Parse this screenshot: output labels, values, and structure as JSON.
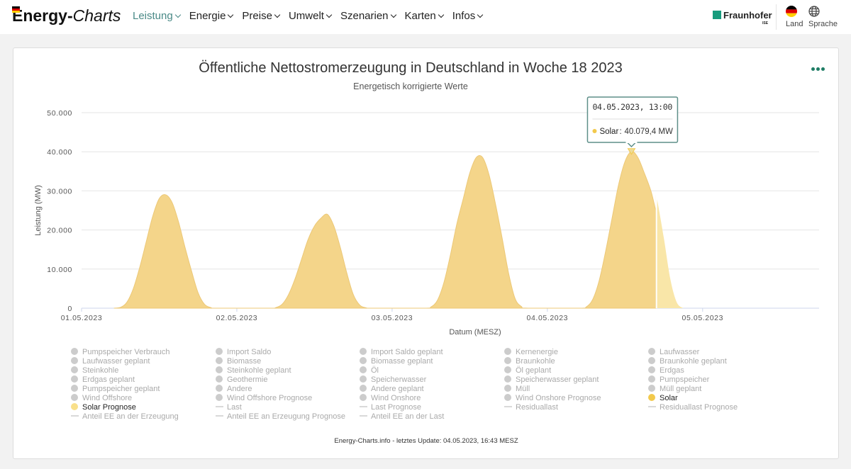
{
  "header": {
    "logo_bold": "Energy-",
    "logo_italic": "Charts",
    "nav": [
      {
        "label": "Leistung",
        "active": true
      },
      {
        "label": "Energie",
        "active": false
      },
      {
        "label": "Preise",
        "active": false
      },
      {
        "label": "Umwelt",
        "active": false
      },
      {
        "label": "Szenarien",
        "active": false
      },
      {
        "label": "Karten",
        "active": false
      },
      {
        "label": "Infos",
        "active": false
      }
    ],
    "brand": "Fraunhofer",
    "brand_sub": "ISE",
    "land_label": "Land",
    "sprache_label": "Sprache",
    "accent_color": "#4a8a87"
  },
  "chart_data": {
    "type": "area",
    "title": "Öffentliche Nettostromerzeugung in Deutschland in Woche 18 2023",
    "subtitle": "Energetisch korrigierte Werte",
    "ylabel": "Leistung (MW)",
    "xlabel": "Datum (MESZ)",
    "ylim": [
      0,
      50000
    ],
    "yticks": [
      0,
      10000,
      20000,
      30000,
      40000,
      50000
    ],
    "ytick_labels": [
      "0",
      "10.000",
      "20.000",
      "30.000",
      "40.000",
      "50.000"
    ],
    "xlim": [
      "2023-05-01T00:00",
      "2023-05-05T18:00"
    ],
    "xtick_labels": [
      "01.05.2023",
      "02.05.2023",
      "03.05.2023",
      "04.05.2023",
      "05.05.2023"
    ],
    "grid": true,
    "series": [
      {
        "name": "Solar",
        "color": "#f4d58a",
        "x": [
          "2023-05-01T05:00",
          "2023-05-01T06:00",
          "2023-05-01T07:00",
          "2023-05-01T08:00",
          "2023-05-01T09:00",
          "2023-05-01T10:00",
          "2023-05-01T11:00",
          "2023-05-01T12:00",
          "2023-05-01T13:00",
          "2023-05-01T14:00",
          "2023-05-01T15:00",
          "2023-05-01T16:00",
          "2023-05-01T17:00",
          "2023-05-01T18:00",
          "2023-05-01T19:00",
          "2023-05-01T20:00",
          "2023-05-01T21:00",
          "2023-05-02T05:00",
          "2023-05-02T06:00",
          "2023-05-02T07:00",
          "2023-05-02T08:00",
          "2023-05-02T09:00",
          "2023-05-02T10:00",
          "2023-05-02T11:00",
          "2023-05-02T12:00",
          "2023-05-02T13:00",
          "2023-05-02T14:00",
          "2023-05-02T15:00",
          "2023-05-02T16:00",
          "2023-05-02T17:00",
          "2023-05-02T18:00",
          "2023-05-02T19:00",
          "2023-05-02T20:00",
          "2023-05-02T21:00",
          "2023-05-03T05:00",
          "2023-05-03T06:00",
          "2023-05-03T07:00",
          "2023-05-03T08:00",
          "2023-05-03T09:00",
          "2023-05-03T10:00",
          "2023-05-03T11:00",
          "2023-05-03T12:00",
          "2023-05-03T13:00",
          "2023-05-03T14:00",
          "2023-05-03T15:00",
          "2023-05-03T16:00",
          "2023-05-03T17:00",
          "2023-05-03T18:00",
          "2023-05-03T19:00",
          "2023-05-03T20:00",
          "2023-05-03T21:00",
          "2023-05-04T05:00",
          "2023-05-04T06:00",
          "2023-05-04T07:00",
          "2023-05-04T08:00",
          "2023-05-04T09:00",
          "2023-05-04T10:00",
          "2023-05-04T11:00",
          "2023-05-04T12:00",
          "2023-05-04T13:00",
          "2023-05-04T14:00",
          "2023-05-04T15:00",
          "2023-05-04T16:00",
          "2023-05-04T16:45"
        ],
        "y": [
          0,
          200,
          1500,
          5000,
          10500,
          17000,
          23500,
          28000,
          29000,
          27000,
          22000,
          15500,
          9500,
          4000,
          1000,
          150,
          0,
          0,
          150,
          1000,
          3500,
          7500,
          12500,
          17500,
          21000,
          23000,
          24000,
          21000,
          15500,
          9000,
          3500,
          800,
          100,
          0,
          0,
          300,
          2000,
          6500,
          13500,
          21500,
          28000,
          34500,
          38500,
          38500,
          34000,
          26500,
          18000,
          9000,
          2500,
          400,
          0,
          0,
          300,
          2200,
          7000,
          14500,
          23000,
          31500,
          37500,
          40079,
          38500,
          34500,
          30000,
          25000
        ]
      },
      {
        "name": "Solar Prognose",
        "color": "#f9e6a8",
        "x": [
          "2023-05-04T16:45",
          "2023-05-04T17:00",
          "2023-05-04T18:00",
          "2023-05-04T19:00",
          "2023-05-04T20:00",
          "2023-05-04T21:00"
        ],
        "y": [
          29000,
          27500,
          18000,
          7500,
          1500,
          0
        ]
      }
    ],
    "tooltip": {
      "date": "04.05.2023, 13:00",
      "series": "Solar",
      "value_label": "40.079,4 MW",
      "x": "2023-05-04T13:00",
      "y": 40079.4
    },
    "legend_placement": "bottom",
    "legend": [
      {
        "label": "Pumpspeicher Verbrauch",
        "symbol": "dot",
        "active": false
      },
      {
        "label": "Import Saldo",
        "symbol": "dot",
        "active": false
      },
      {
        "label": "Import Saldo geplant",
        "symbol": "dot",
        "active": false
      },
      {
        "label": "Kernenergie",
        "symbol": "dot",
        "active": false
      },
      {
        "label": "Laufwasser",
        "symbol": "dot",
        "active": false
      },
      {
        "label": "Laufwasser geplant",
        "symbol": "dot",
        "active": false
      },
      {
        "label": "Biomasse",
        "symbol": "dot",
        "active": false
      },
      {
        "label": "Biomasse geplant",
        "symbol": "dot",
        "active": false
      },
      {
        "label": "Braunkohle",
        "symbol": "dot",
        "active": false
      },
      {
        "label": "Braunkohle geplant",
        "symbol": "dot",
        "active": false
      },
      {
        "label": "Steinkohle",
        "symbol": "dot",
        "active": false
      },
      {
        "label": "Steinkohle geplant",
        "symbol": "dot",
        "active": false
      },
      {
        "label": "Öl",
        "symbol": "dot",
        "active": false
      },
      {
        "label": "Öl geplant",
        "symbol": "dot",
        "active": false
      },
      {
        "label": "Erdgas",
        "symbol": "dot",
        "active": false
      },
      {
        "label": "Erdgas geplant",
        "symbol": "dot",
        "active": false
      },
      {
        "label": "Geothermie",
        "symbol": "dot",
        "active": false
      },
      {
        "label": "Speicherwasser",
        "symbol": "dot",
        "active": false
      },
      {
        "label": "Speicherwasser geplant",
        "symbol": "dot",
        "active": false
      },
      {
        "label": "Pumpspeicher",
        "symbol": "dot",
        "active": false
      },
      {
        "label": "Pumpspeicher geplant",
        "symbol": "dot",
        "active": false
      },
      {
        "label": "Andere",
        "symbol": "dot",
        "active": false
      },
      {
        "label": "Andere geplant",
        "symbol": "dot",
        "active": false
      },
      {
        "label": "Müll",
        "symbol": "dot",
        "active": false
      },
      {
        "label": "Müll geplant",
        "symbol": "dot",
        "active": false
      },
      {
        "label": "Wind Offshore",
        "symbol": "dot",
        "active": false
      },
      {
        "label": "Wind Offshore Prognose",
        "symbol": "dot",
        "active": false
      },
      {
        "label": "Wind Onshore",
        "symbol": "dot",
        "active": false
      },
      {
        "label": "Wind Onshore Prognose",
        "symbol": "dot",
        "active": false
      },
      {
        "label": "Solar",
        "symbol": "dot",
        "active": true,
        "color": "#f2c94c"
      },
      {
        "label": "Solar Prognose",
        "symbol": "dot",
        "active": true,
        "color": "#f9e08a"
      },
      {
        "label": "Last",
        "symbol": "line",
        "active": false
      },
      {
        "label": "Last Prognose",
        "symbol": "line",
        "active": false
      },
      {
        "label": "Residuallast",
        "symbol": "line",
        "active": false
      },
      {
        "label": "Residuallast Prognose",
        "symbol": "line",
        "active": false
      },
      {
        "label": "Anteil EE an der Erzeugung",
        "symbol": "line",
        "active": false
      },
      {
        "label": "Anteil EE an Erzeugung Prognose",
        "symbol": "line",
        "active": false
      },
      {
        "label": "Anteil EE an der Last",
        "symbol": "line",
        "active": false
      }
    ],
    "credit": "Energy-Charts.info - letztes Update: 04.05.2023, 16:43 MESZ"
  }
}
